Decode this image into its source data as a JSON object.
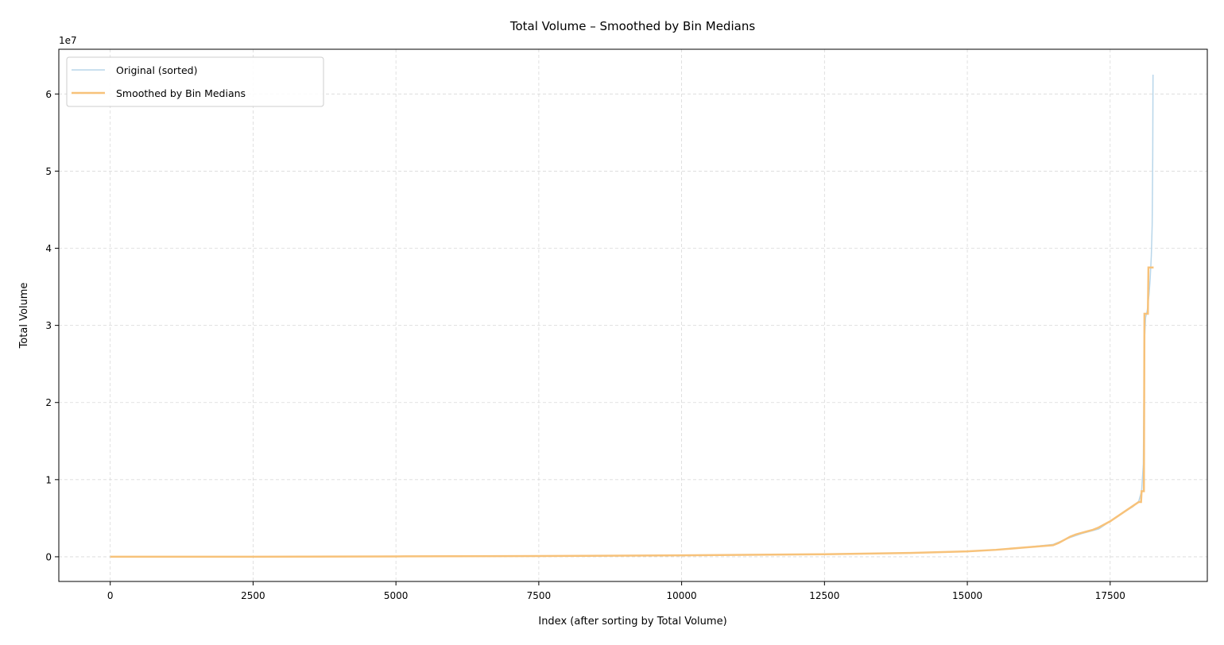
{
  "chart_data": {
    "type": "line",
    "title": "Total Volume – Smoothed by Bin Medians",
    "xlabel": "Index (after sorting by Total Volume)",
    "ylabel": "Total Volume",
    "y_offset_label": "1e7",
    "xlim": [
      -900,
      19200
    ],
    "ylim": [
      -3200000,
      65800000
    ],
    "xticks": [
      0,
      2500,
      5000,
      7500,
      10000,
      12500,
      15000,
      17500
    ],
    "xtick_labels": [
      "0",
      "2500",
      "5000",
      "7500",
      "10000",
      "12500",
      "15000",
      "17500"
    ],
    "yticks": [
      0,
      10000000,
      20000000,
      30000000,
      40000000,
      50000000,
      60000000
    ],
    "ytick_labels": [
      "0",
      "1",
      "2",
      "3",
      "4",
      "5",
      "6"
    ],
    "grid": true,
    "legend_position": "top-left",
    "series": [
      {
        "name": "Original (sorted)",
        "color": "#b8d6ea",
        "x": [
          0,
          2500,
          5000,
          7500,
          10000,
          12500,
          14000,
          15000,
          15500,
          16000,
          16500,
          16800,
          17000,
          17300,
          17500,
          17700,
          17900,
          18000,
          18050,
          18080,
          18100,
          18120,
          18150,
          18180,
          18200,
          18220,
          18235,
          18245,
          18250
        ],
        "y": [
          0,
          10000,
          50000,
          100000,
          180000,
          330000,
          500000,
          700000,
          900000,
          1200000,
          1600000,
          2500000,
          3000000,
          3600000,
          4600000,
          5600000,
          6500000,
          7200000,
          8500000,
          12000000,
          28000000,
          31000000,
          32000000,
          34000000,
          36000000,
          39000000,
          43000000,
          52000000,
          62500000
        ]
      },
      {
        "name": "Smoothed by Bin Medians",
        "color": "#f7c27a",
        "x": [
          0,
          2500,
          5000,
          7500,
          10000,
          12500,
          14000,
          15000,
          15500,
          16000,
          16500,
          16600,
          16700,
          16800,
          16900,
          17000,
          17100,
          17200,
          17300,
          17400,
          17500,
          17600,
          17700,
          17800,
          17900,
          18000,
          18040,
          18050,
          18090,
          18100,
          18160,
          18170,
          18200,
          18260
        ],
        "y": [
          0,
          10000,
          50000,
          100000,
          180000,
          330000,
          500000,
          700000,
          900000,
          1200000,
          1500000,
          1800000,
          2200000,
          2600000,
          2900000,
          3100000,
          3300000,
          3500000,
          3800000,
          4200000,
          4600000,
          5100000,
          5600000,
          6100000,
          6600000,
          7100000,
          7100000,
          8500000,
          8500000,
          31500000,
          31500000,
          37500000,
          37500000,
          37500000
        ]
      }
    ]
  }
}
